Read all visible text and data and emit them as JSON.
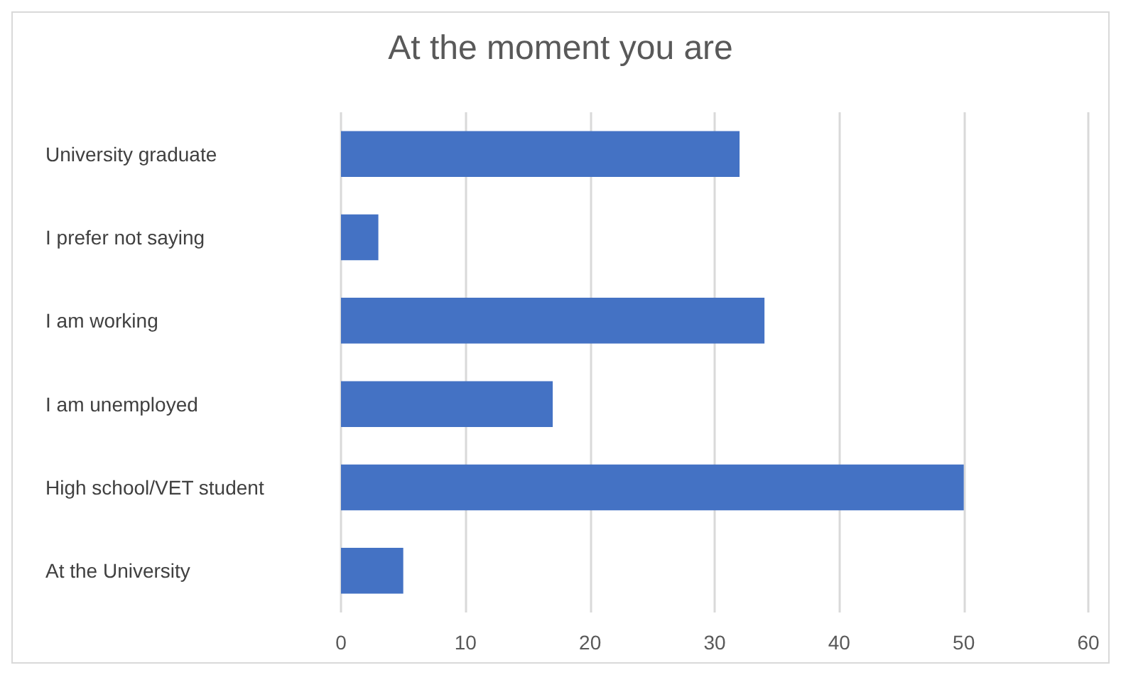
{
  "chart_data": {
    "type": "bar",
    "orientation": "horizontal",
    "title": "At the moment you are",
    "categories": [
      "University graduate",
      "I prefer not saying",
      "I am working",
      "I am unemployed",
      "High school/VET student",
      "At the University"
    ],
    "values": [
      32,
      3,
      34,
      17,
      50,
      5
    ],
    "color": "#4472c4",
    "xlim": [
      0,
      60
    ],
    "xticks": [
      0,
      10,
      20,
      30,
      40,
      50,
      60
    ],
    "grid": "x"
  }
}
